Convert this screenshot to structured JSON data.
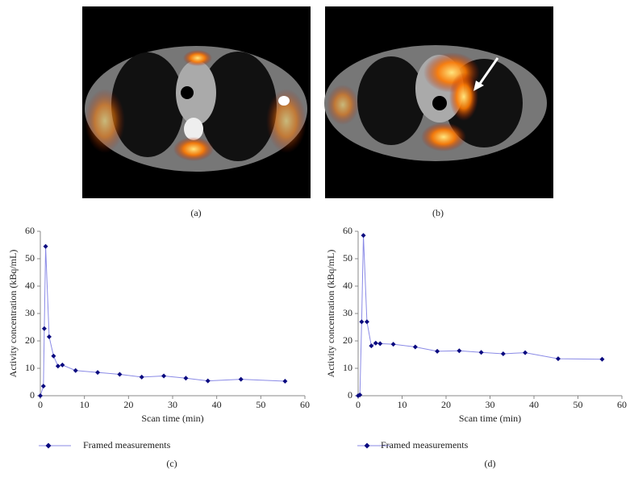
{
  "panels": [
    {
      "label": "(a)"
    },
    {
      "label": "(b)"
    }
  ],
  "chart_data": [
    {
      "type": "line",
      "label": "(c)",
      "x_label": "Scan time (min)",
      "y_label": "Activity concentration (kBq/mL)",
      "x": [
        0,
        0.7,
        0.9,
        1.2,
        2,
        3,
        4,
        5,
        8,
        13,
        18,
        23,
        28,
        33,
        38,
        45.5,
        55.5
      ],
      "series": [
        {
          "name": "Framed measurements",
          "color": "#8a8ae6",
          "marker_color": "#0a0a80",
          "values": [
            0,
            3.5,
            24.5,
            54.5,
            21.5,
            14.5,
            10.8,
            11.2,
            9.2,
            8.5,
            7.8,
            6.8,
            7.2,
            6.4,
            5.4,
            6,
            5.3
          ]
        }
      ],
      "xlim": [
        0,
        60
      ],
      "xticks": [
        0,
        10,
        20,
        30,
        40,
        50,
        60
      ],
      "ylim": [
        0,
        60
      ],
      "yticks": [
        0,
        10,
        20,
        30,
        40,
        50,
        60
      ],
      "grid": false,
      "legend": "bottom"
    },
    {
      "type": "line",
      "label": "(d)",
      "x_label": "Scan time (min)",
      "y_label": "Activity concentration (kBq/mL)",
      "x": [
        0,
        0.4,
        0.8,
        1.2,
        2,
        3,
        4,
        5,
        8,
        13,
        18,
        23,
        28,
        33,
        38,
        45.5,
        55.5
      ],
      "series": [
        {
          "name": "Framed measurements",
          "color": "#8a8ae6",
          "marker_color": "#0a0a80",
          "values": [
            0,
            0.3,
            27,
            58.5,
            27,
            18.2,
            19.2,
            19,
            18.8,
            17.8,
            16.2,
            16.4,
            15.8,
            15.3,
            15.7,
            13.5,
            13.3
          ]
        }
      ],
      "xlim": [
        0,
        60
      ],
      "xticks": [
        0,
        10,
        20,
        30,
        40,
        50,
        60
      ],
      "ylim": [
        0,
        60
      ],
      "yticks": [
        0,
        10,
        20,
        30,
        40,
        50,
        60
      ],
      "grid": false,
      "legend": "bottom"
    }
  ]
}
